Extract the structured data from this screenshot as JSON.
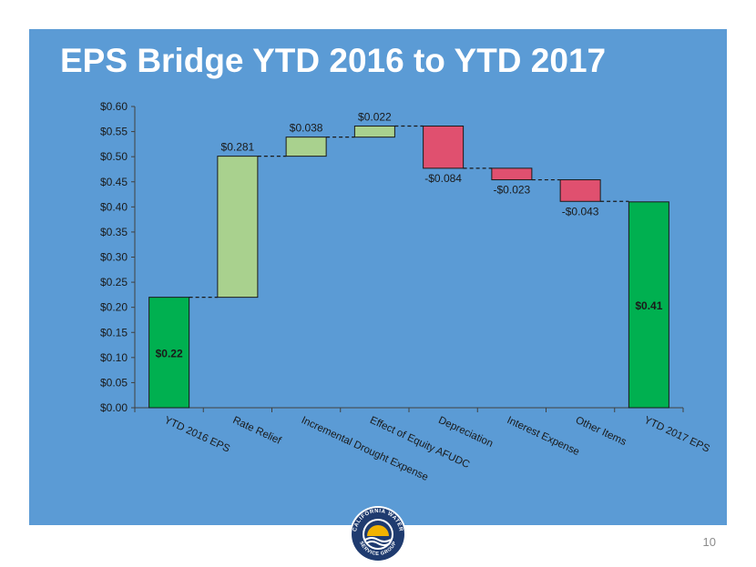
{
  "slide": {
    "title": "EPS Bridge YTD 2016 to YTD 2017",
    "page_number": "10",
    "logo_text": "CALIFORNIA WATER SERVICE GROUP"
  },
  "colors": {
    "panel": "#5b9bd5",
    "total_bar": "#00b050",
    "increase_bar": "#a9d18e",
    "decrease_bar": "#e0506f",
    "logo_navy": "#1f3b6f",
    "logo_gold": "#f2b300"
  },
  "chart_data": {
    "type": "bar",
    "subtype": "waterfall",
    "categories": [
      "YTD 2016 EPS",
      "Rate Relief",
      "Incremental Drought Expense",
      "Effect of Equity AFUDC",
      "Depreciation",
      "Interest Expense",
      "Other Items",
      "YTD 2017 EPS"
    ],
    "values": [
      0.22,
      0.281,
      0.038,
      0.022,
      -0.084,
      -0.023,
      -0.043,
      0.41
    ],
    "kinds": [
      "total",
      "increase",
      "increase",
      "increase",
      "decrease",
      "decrease",
      "decrease",
      "total"
    ],
    "data_labels": [
      "$0.22",
      "$0.281",
      "$0.038",
      "$0.022",
      "-$0.084",
      "-$0.023",
      "-$0.043",
      "$0.41"
    ],
    "y_ticks": [
      "$0.00",
      "$0.05",
      "$0.10",
      "$0.15",
      "$0.20",
      "$0.25",
      "$0.30",
      "$0.35",
      "$0.40",
      "$0.45",
      "$0.50",
      "$0.55",
      "$0.60"
    ],
    "ylim": [
      0,
      0.6
    ],
    "title": "",
    "xlabel": "",
    "ylabel": "",
    "grid": false,
    "legend": "none"
  }
}
